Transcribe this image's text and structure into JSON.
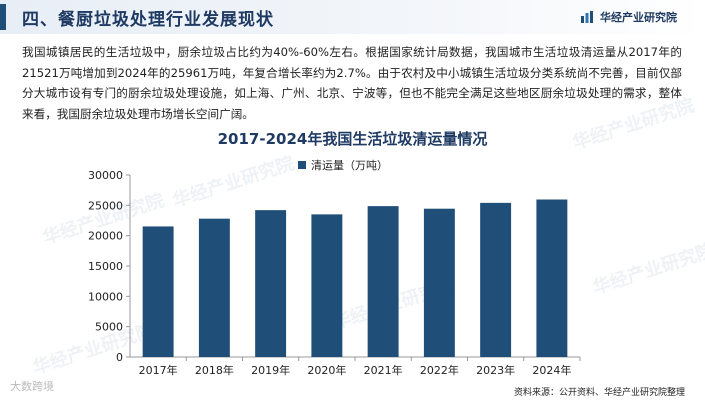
{
  "header": {
    "section_title": "四、餐厨垃圾处理行业发展现状",
    "brand_name": "华经产业研究院"
  },
  "body_text": "我国城镇居民的生活垃圾中，厨余垃圾占比约为40%-60%左右。根据国家统计局数据，我国城市生活垃圾清运量从2017年的21521万吨增加到2024年的25961万吨，年复合增长率约为2.7%。由于农村及中小城镇生活垃圾分类系统尚不完善，目前仅部分大城市设有专门的厨余垃圾处理设施，如上海、广州、北京、宁波等，但也不能完全满足这些地区厨余垃圾处理的需求，整体来看，我国厨余垃圾处理市场增长空间广阔。",
  "chart_data": {
    "type": "bar",
    "title": "2017-2024年我国生活垃圾清运量情况",
    "categories": [
      "2017年",
      "2018年",
      "2019年",
      "2020年",
      "2021年",
      "2022年",
      "2023年",
      "2024年"
    ],
    "series": [
      {
        "name": "清运量（万吨）",
        "values": [
          21521,
          22802,
          24206,
          23512,
          24869,
          24445,
          25407,
          25961
        ]
      }
    ],
    "ylim": [
      0,
      30000
    ],
    "yticks": [
      "0",
      "5000",
      "10000",
      "15000",
      "20000",
      "25000",
      "30000"
    ],
    "bar_color": "#1f4e79",
    "legend_position": "top-center",
    "grid": false
  },
  "footer": {
    "source": "资料来源：公开资料、华经产业研究院整理",
    "corner_mark": "大数跨境"
  },
  "watermark_text": "华经产业研究院"
}
